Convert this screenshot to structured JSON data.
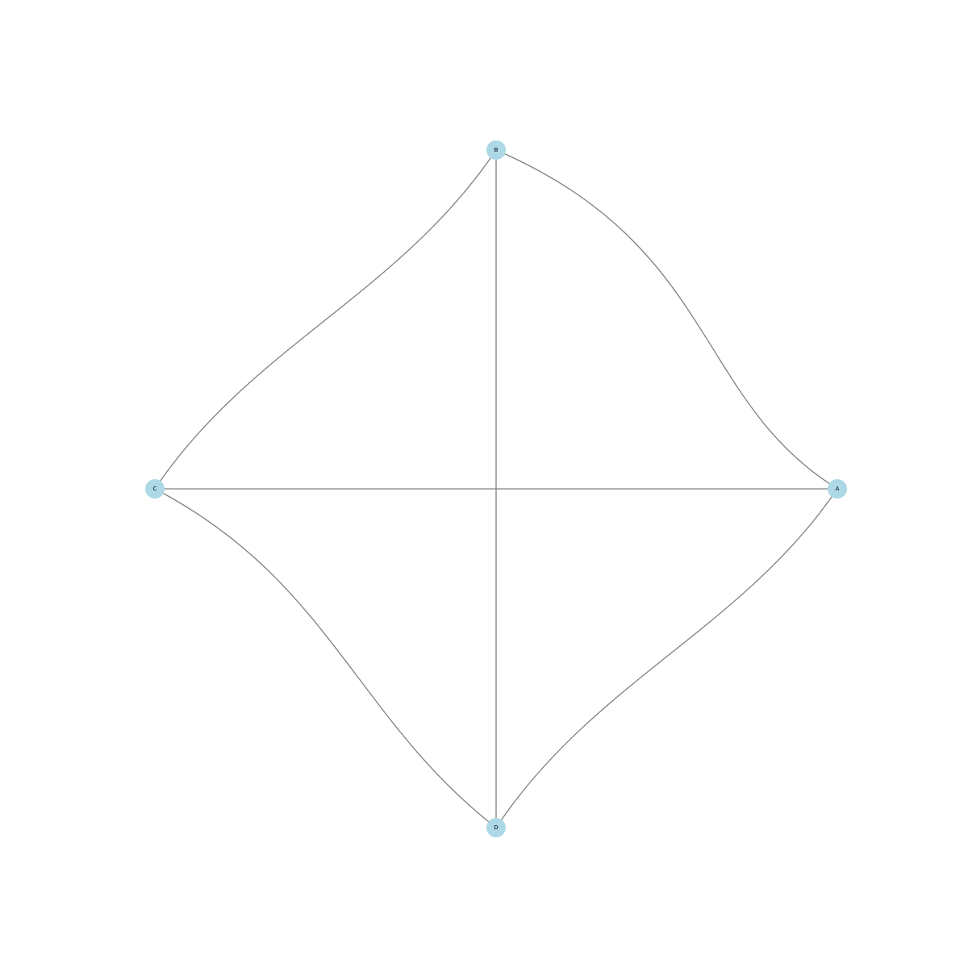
{
  "diagram": {
    "nodes": [
      {
        "id": "A",
        "label": "A"
      },
      {
        "id": "B",
        "label": "B"
      },
      {
        "id": "C",
        "label": "C"
      },
      {
        "id": "D",
        "label": "D"
      }
    ],
    "edges": [
      {
        "source": "B",
        "target": "A",
        "style": "curved"
      },
      {
        "source": "C",
        "target": "B",
        "style": "curved"
      },
      {
        "source": "D",
        "target": "C",
        "style": "curved"
      },
      {
        "source": "A",
        "target": "D",
        "style": "curved"
      },
      {
        "source": "C",
        "target": "A",
        "style": "straight"
      },
      {
        "source": "B",
        "target": "D",
        "style": "straight"
      }
    ],
    "colors": {
      "node_fill": "#add8e6",
      "edge_stroke": "#808080",
      "label_text": "#000000",
      "background": "#ffffff"
    }
  }
}
